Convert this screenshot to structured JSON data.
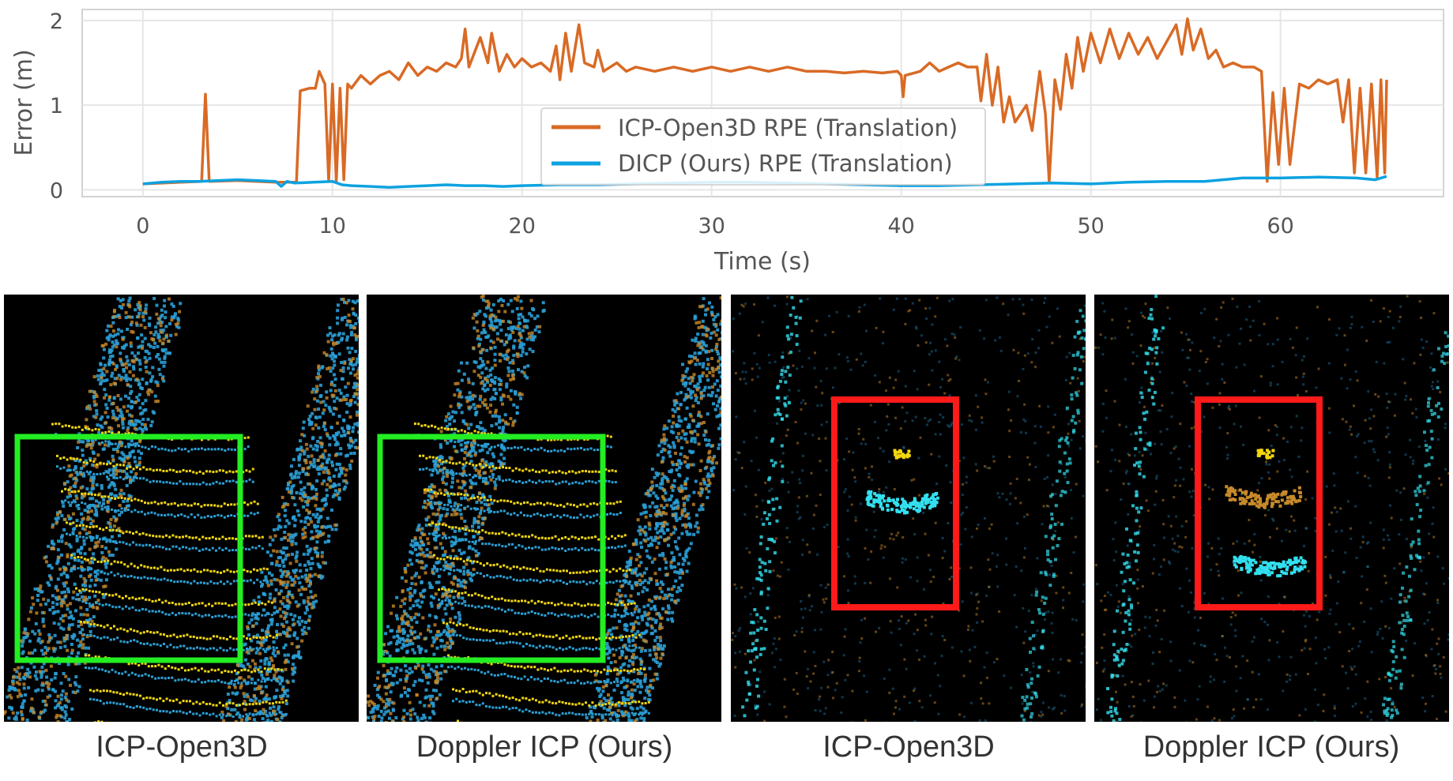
{
  "chart_data": {
    "type": "line",
    "xlabel": "Time (s)",
    "ylabel": "Error (m)",
    "xlim": [
      -3.2,
      68.6
    ],
    "ylim": [
      -0.08,
      2.13
    ],
    "xticks": [
      0,
      10,
      20,
      30,
      40,
      50,
      60
    ],
    "yticks": [
      0,
      1,
      2
    ],
    "grid": true,
    "legend_position": "center",
    "series": [
      {
        "name": "ICP-Open3D RPE (Translation)",
        "color": "#d96a25",
        "points": [
          [
            0,
            0.07
          ],
          [
            2,
            0.09
          ],
          [
            3.1,
            0.1
          ],
          [
            3.3,
            1.13
          ],
          [
            3.5,
            0.1
          ],
          [
            5,
            0.11
          ],
          [
            7,
            0.09
          ],
          [
            8.1,
            0.09
          ],
          [
            8.3,
            1.17
          ],
          [
            8.8,
            1.2
          ],
          [
            9.1,
            1.2
          ],
          [
            9.3,
            1.4
          ],
          [
            9.6,
            1.25
          ],
          [
            9.8,
            0.1
          ],
          [
            10,
            1.25
          ],
          [
            10.2,
            0.1
          ],
          [
            10.4,
            1.2
          ],
          [
            10.6,
            0.12
          ],
          [
            10.8,
            1.25
          ],
          [
            11,
            1.2
          ],
          [
            11.5,
            1.35
          ],
          [
            12,
            1.25
          ],
          [
            12.5,
            1.35
          ],
          [
            13,
            1.4
          ],
          [
            13.5,
            1.3
          ],
          [
            14,
            1.5
          ],
          [
            14.5,
            1.35
          ],
          [
            15,
            1.45
          ],
          [
            15.5,
            1.4
          ],
          [
            16,
            1.5
          ],
          [
            16.5,
            1.45
          ],
          [
            16.8,
            1.55
          ],
          [
            17,
            1.9
          ],
          [
            17.2,
            1.45
          ],
          [
            17.8,
            1.8
          ],
          [
            18.2,
            1.5
          ],
          [
            18.4,
            1.85
          ],
          [
            18.8,
            1.4
          ],
          [
            19.2,
            1.6
          ],
          [
            19.6,
            1.45
          ],
          [
            20,
            1.55
          ],
          [
            20.5,
            1.45
          ],
          [
            21,
            1.5
          ],
          [
            21.5,
            1.4
          ],
          [
            21.8,
            1.7
          ],
          [
            22,
            1.3
          ],
          [
            22.3,
            1.85
          ],
          [
            22.6,
            1.4
          ],
          [
            23,
            1.95
          ],
          [
            23.3,
            1.5
          ],
          [
            23.8,
            1.45
          ],
          [
            24,
            1.65
          ],
          [
            24.3,
            1.4
          ],
          [
            25,
            1.5
          ],
          [
            25.5,
            1.4
          ],
          [
            26,
            1.45
          ],
          [
            27,
            1.4
          ],
          [
            28,
            1.45
          ],
          [
            29,
            1.4
          ],
          [
            30,
            1.45
          ],
          [
            31,
            1.4
          ],
          [
            32,
            1.45
          ],
          [
            33,
            1.4
          ],
          [
            34,
            1.45
          ],
          [
            35,
            1.4
          ],
          [
            36,
            1.4
          ],
          [
            37,
            1.38
          ],
          [
            38,
            1.4
          ],
          [
            39,
            1.38
          ],
          [
            39.8,
            1.4
          ],
          [
            40,
            1.35
          ],
          [
            40.1,
            1.1
          ],
          [
            40.2,
            1.35
          ],
          [
            41,
            1.4
          ],
          [
            41.5,
            1.5
          ],
          [
            42,
            1.4
          ],
          [
            42.5,
            1.45
          ],
          [
            43,
            1.5
          ],
          [
            43.5,
            1.45
          ],
          [
            44,
            1.45
          ],
          [
            44.2,
            1.05
          ],
          [
            44.5,
            1.6
          ],
          [
            44.8,
            1.0
          ],
          [
            45.1,
            1.45
          ],
          [
            45.4,
            0.8
          ],
          [
            45.7,
            1.1
          ],
          [
            46,
            0.8
          ],
          [
            46.3,
            0.9
          ],
          [
            46.6,
            1.0
          ],
          [
            46.9,
            0.7
          ],
          [
            47.3,
            1.4
          ],
          [
            47.6,
            0.9
          ],
          [
            47.8,
            0.1
          ],
          [
            48.1,
            1.3
          ],
          [
            48.4,
            0.95
          ],
          [
            48.7,
            1.6
          ],
          [
            49,
            1.2
          ],
          [
            49.3,
            1.8
          ],
          [
            49.6,
            1.4
          ],
          [
            50,
            1.85
          ],
          [
            50.5,
            1.5
          ],
          [
            51,
            1.9
          ],
          [
            51.5,
            1.55
          ],
          [
            52,
            1.85
          ],
          [
            52.5,
            1.6
          ],
          [
            53,
            1.8
          ],
          [
            53.5,
            1.55
          ],
          [
            54,
            1.75
          ],
          [
            54.5,
            1.95
          ],
          [
            54.8,
            1.6
          ],
          [
            55.1,
            2.02
          ],
          [
            55.4,
            1.65
          ],
          [
            55.8,
            1.9
          ],
          [
            56.2,
            1.55
          ],
          [
            56.6,
            1.65
          ],
          [
            57,
            1.45
          ],
          [
            57.5,
            1.5
          ],
          [
            58,
            1.45
          ],
          [
            58.6,
            1.45
          ],
          [
            59,
            1.4
          ],
          [
            59.3,
            0.1
          ],
          [
            59.6,
            1.15
          ],
          [
            59.9,
            0.3
          ],
          [
            60.2,
            1.2
          ],
          [
            60.5,
            0.3
          ],
          [
            61,
            1.25
          ],
          [
            61.5,
            1.2
          ],
          [
            62,
            1.3
          ],
          [
            62.5,
            1.25
          ],
          [
            63,
            1.3
          ],
          [
            63.3,
            0.8
          ],
          [
            63.6,
            1.3
          ],
          [
            63.9,
            0.2
          ],
          [
            64.2,
            1.2
          ],
          [
            64.5,
            0.2
          ],
          [
            64.8,
            1.25
          ],
          [
            65.1,
            0.15
          ],
          [
            65.3,
            1.3
          ],
          [
            65.5,
            0.2
          ],
          [
            65.6,
            1.3
          ]
        ]
      },
      {
        "name": "DICP (Ours) RPE (Translation)",
        "color": "#0da2e0",
        "points": [
          [
            0,
            0.07
          ],
          [
            1,
            0.09
          ],
          [
            2,
            0.1
          ],
          [
            3,
            0.1
          ],
          [
            4,
            0.11
          ],
          [
            5,
            0.12
          ],
          [
            6,
            0.11
          ],
          [
            7,
            0.1
          ],
          [
            7.3,
            0.04
          ],
          [
            7.6,
            0.1
          ],
          [
            8,
            0.08
          ],
          [
            9,
            0.09
          ],
          [
            10,
            0.1
          ],
          [
            10.5,
            0.06
          ],
          [
            11,
            0.05
          ],
          [
            12,
            0.04
          ],
          [
            13,
            0.03
          ],
          [
            14,
            0.04
          ],
          [
            15,
            0.05
          ],
          [
            16,
            0.06
          ],
          [
            17,
            0.05
          ],
          [
            18,
            0.05
          ],
          [
            19,
            0.04
          ],
          [
            20,
            0.05
          ],
          [
            22,
            0.06
          ],
          [
            24,
            0.06
          ],
          [
            26,
            0.07
          ],
          [
            28,
            0.08
          ],
          [
            30,
            0.09
          ],
          [
            32,
            0.09
          ],
          [
            34,
            0.08
          ],
          [
            36,
            0.07
          ],
          [
            38,
            0.06
          ],
          [
            40,
            0.05
          ],
          [
            42,
            0.05
          ],
          [
            44,
            0.06
          ],
          [
            46,
            0.07
          ],
          [
            48,
            0.08
          ],
          [
            50,
            0.07
          ],
          [
            52,
            0.09
          ],
          [
            54,
            0.1
          ],
          [
            56,
            0.1
          ],
          [
            58,
            0.14
          ],
          [
            60,
            0.14
          ],
          [
            62,
            0.15
          ],
          [
            64,
            0.14
          ],
          [
            65,
            0.12
          ],
          [
            65.6,
            0.16
          ]
        ]
      }
    ]
  },
  "captions": [
    "ICP-Open3D",
    "Doppler ICP (Ours)",
    "ICP-Open3D",
    "Doppler ICP (Ours)"
  ],
  "colors": {
    "green_box": "#22ee22",
    "red_box": "#ff1a1a",
    "yellow_points": "#f2d60e",
    "blue_points": "#2a9fd6",
    "orange_points": "#c78a2a",
    "cyan_points": "#33e0f0"
  }
}
